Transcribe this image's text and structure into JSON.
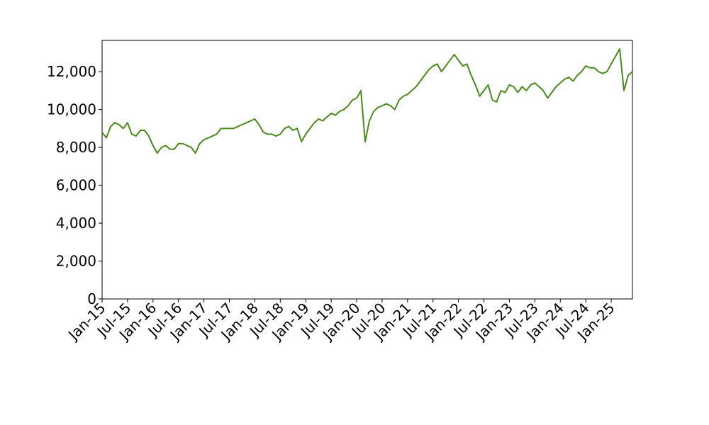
{
  "chart_data": {
    "type": "line",
    "x": [
      "2015-01",
      "2015-02",
      "2015-03",
      "2015-04",
      "2015-05",
      "2015-06",
      "2015-07",
      "2015-08",
      "2015-09",
      "2015-10",
      "2015-11",
      "2015-12",
      "2016-01",
      "2016-02",
      "2016-03",
      "2016-04",
      "2016-05",
      "2016-06",
      "2016-07",
      "2016-08",
      "2016-09",
      "2016-10",
      "2016-11",
      "2016-12",
      "2017-01",
      "2017-02",
      "2017-03",
      "2017-04",
      "2017-05",
      "2017-06",
      "2017-07",
      "2017-08",
      "2017-09",
      "2017-10",
      "2017-11",
      "2017-12",
      "2018-01",
      "2018-02",
      "2018-03",
      "2018-04",
      "2018-05",
      "2018-06",
      "2018-07",
      "2018-08",
      "2018-09",
      "2018-10",
      "2018-11",
      "2018-12",
      "2019-01",
      "2019-02",
      "2019-03",
      "2019-04",
      "2019-05",
      "2019-06",
      "2019-07",
      "2019-08",
      "2019-09",
      "2019-10",
      "2019-11",
      "2019-12",
      "2020-01",
      "2020-02",
      "2020-03",
      "2020-04",
      "2020-05",
      "2020-06",
      "2020-07",
      "2020-08",
      "2020-09",
      "2020-10",
      "2020-11",
      "2020-12",
      "2021-01",
      "2021-02",
      "2021-03",
      "2021-04",
      "2021-05",
      "2021-06",
      "2021-07",
      "2021-08",
      "2021-09",
      "2021-10",
      "2021-11",
      "2021-12",
      "2022-01",
      "2022-02",
      "2022-03",
      "2022-04",
      "2022-05",
      "2022-06",
      "2022-07",
      "2022-08",
      "2022-09",
      "2022-10",
      "2022-11",
      "2022-12",
      "2023-01",
      "2023-02",
      "2023-03",
      "2023-04",
      "2023-05",
      "2023-06",
      "2023-07",
      "2023-08",
      "2023-09",
      "2023-10",
      "2023-11",
      "2023-12",
      "2024-01",
      "2024-02",
      "2024-03",
      "2024-04",
      "2024-05",
      "2024-06",
      "2024-07",
      "2024-08",
      "2024-09",
      "2024-10",
      "2024-11",
      "2024-12",
      "2025-01",
      "2025-02",
      "2025-03",
      "2025-04",
      "2025-05",
      "2025-06"
    ],
    "values": [
      8800,
      8500,
      9100,
      9300,
      9200,
      9000,
      9300,
      8700,
      8600,
      8900,
      8900,
      8600,
      8100,
      7700,
      8000,
      8100,
      7900,
      7900,
      8200,
      8200,
      8100,
      8000,
      7700,
      8200,
      8400,
      8500,
      8600,
      8700,
      9000,
      9000,
      9000,
      9000,
      9100,
      9200,
      9300,
      9400,
      9500,
      9200,
      8800,
      8700,
      8700,
      8600,
      8700,
      9000,
      9100,
      8900,
      9000,
      8300,
      8700,
      9000,
      9300,
      9500,
      9400,
      9600,
      9800,
      9700,
      9900,
      10000,
      10200,
      10500,
      10600,
      11000,
      8300,
      9400,
      9900,
      10100,
      10200,
      10300,
      10200,
      10000,
      10500,
      10700,
      10800,
      11000,
      11200,
      11500,
      11800,
      12100,
      12300,
      12400,
      12000,
      12300,
      12600,
      12900,
      12600,
      12300,
      12400,
      11800,
      11300,
      10700,
      11000,
      11300,
      10500,
      10400,
      11000,
      10900,
      11300,
      11200,
      10900,
      11200,
      11000,
      11300,
      11400,
      11200,
      11000,
      10600,
      10900,
      11200,
      11400,
      11600,
      11700,
      11500,
      11800,
      12000,
      12300,
      12200,
      12200,
      12000,
      11900,
      12000,
      12400,
      12800,
      13200,
      11000,
      11800,
      12000
    ],
    "color": "#4a8a1c",
    "xlim": [
      "2015-01",
      "2025-06"
    ],
    "xticks": [
      {
        "value": "2015-01",
        "label": "Jan-15"
      },
      {
        "value": "2015-07",
        "label": "Jul-15"
      },
      {
        "value": "2016-01",
        "label": "Jan-16"
      },
      {
        "value": "2016-07",
        "label": "Jul-16"
      },
      {
        "value": "2017-01",
        "label": "Jan-17"
      },
      {
        "value": "2017-07",
        "label": "Jul-17"
      },
      {
        "value": "2018-01",
        "label": "Jan-18"
      },
      {
        "value": "2018-07",
        "label": "Jul-18"
      },
      {
        "value": "2019-01",
        "label": "Jan-19"
      },
      {
        "value": "2019-07",
        "label": "Jul-19"
      },
      {
        "value": "2020-01",
        "label": "Jan-20"
      },
      {
        "value": "2020-07",
        "label": "Jul-20"
      },
      {
        "value": "2021-01",
        "label": "Jan-21"
      },
      {
        "value": "2021-07",
        "label": "Jul-21"
      },
      {
        "value": "2022-01",
        "label": "Jan-22"
      },
      {
        "value": "2022-07",
        "label": "Jul-22"
      },
      {
        "value": "2023-01",
        "label": "Jan-23"
      },
      {
        "value": "2023-07",
        "label": "Jul-23"
      },
      {
        "value": "2024-01",
        "label": "Jan-24"
      },
      {
        "value": "2024-07",
        "label": "Jul-24"
      },
      {
        "value": "2025-01",
        "label": "Jan-25"
      }
    ],
    "ylim": [
      0,
      13650
    ],
    "yticks": [
      0,
      {
        "value": 2000,
        "label": "2,000"
      },
      {
        "value": 4000,
        "label": "4,000"
      },
      {
        "value": 6000,
        "label": "6,000"
      },
      {
        "value": 8000,
        "label": "8,000"
      },
      {
        "value": 10000,
        "label": "10,000"
      },
      {
        "value": 12000,
        "label": "12,000"
      }
    ],
    "grid": false
  }
}
